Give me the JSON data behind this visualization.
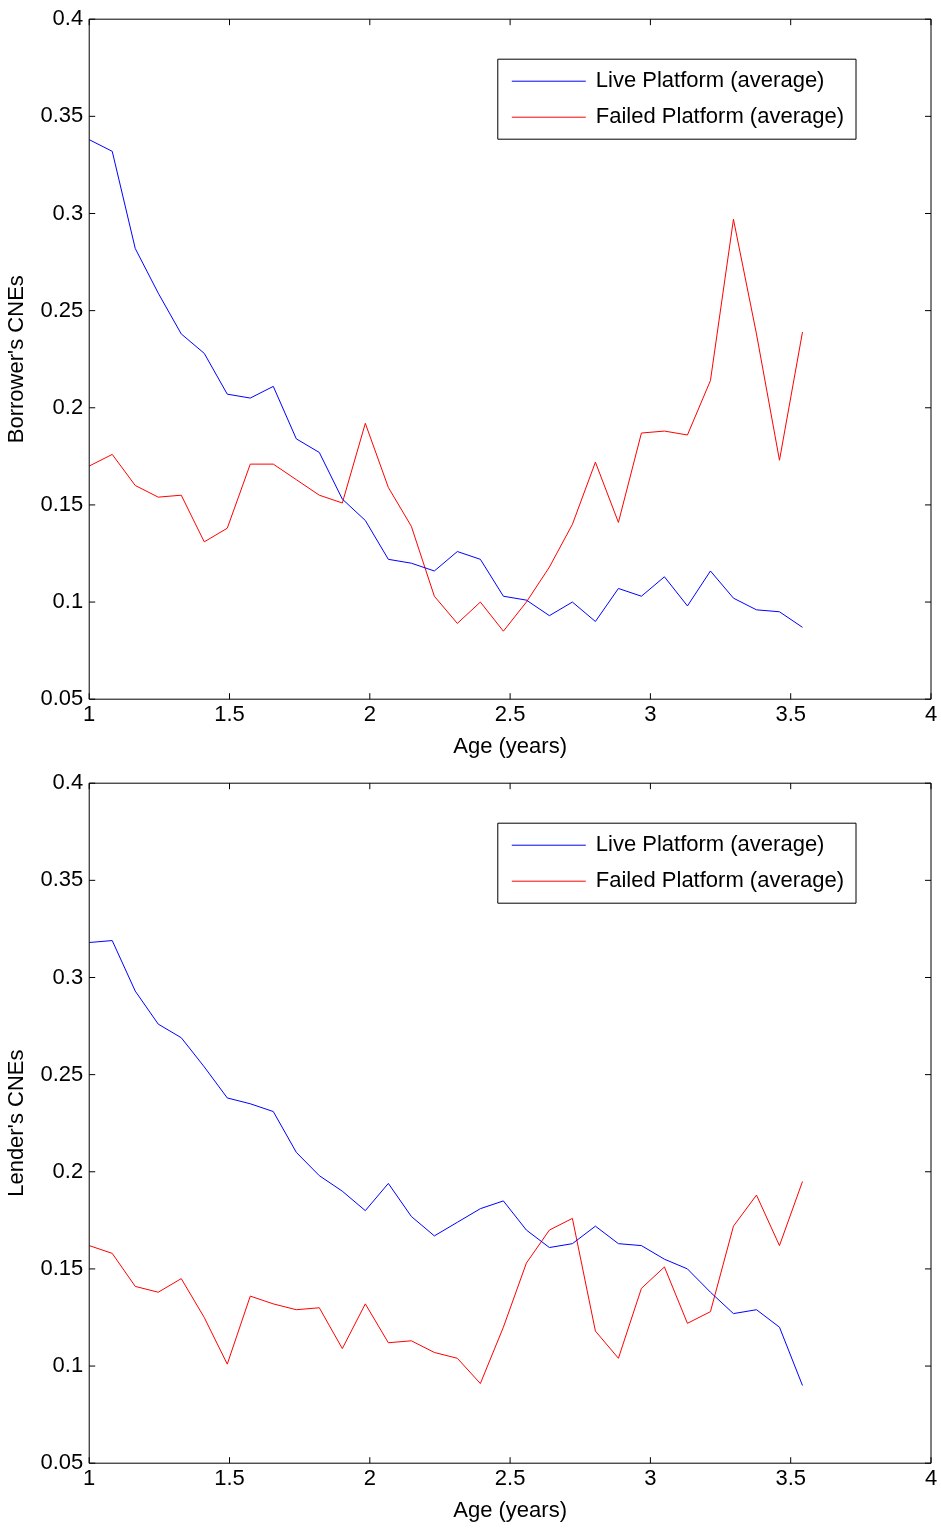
{
  "chart_data": [
    {
      "type": "line",
      "xlabel": "Age (years)",
      "ylabel": "Borrower's CNEs",
      "x": [
        1,
        1.082,
        1.164,
        1.246,
        1.328,
        1.41,
        1.492,
        1.574,
        1.656,
        1.738,
        1.82,
        1.902,
        1.984,
        2.066,
        2.148,
        2.23,
        2.312,
        2.394,
        2.476,
        2.558,
        2.64,
        2.722,
        2.804,
        2.886,
        2.968,
        3.05,
        3.132,
        3.214,
        3.296,
        3.378,
        3.46,
        3.542
      ],
      "series": [
        {
          "name": "Live Platform (average)",
          "color": "#0000ff",
          "values": [
            0.338,
            0.332,
            0.282,
            0.259,
            0.238,
            0.228,
            0.207,
            0.205,
            0.211,
            0.184,
            0.177,
            0.153,
            0.142,
            0.122,
            0.12,
            0.116,
            0.126,
            0.122,
            0.103,
            0.101,
            0.093,
            0.1,
            0.09,
            0.107,
            0.103,
            0.113,
            0.098,
            0.116,
            0.102,
            0.096,
            0.095,
            0.087
          ]
        },
        {
          "name": "Failed Platform (average)",
          "color": "#ff0000",
          "values": [
            0.17,
            0.176,
            0.16,
            0.154,
            0.155,
            0.131,
            0.138,
            0.171,
            0.171,
            0.163,
            0.155,
            0.151,
            0.192,
            0.159,
            0.139,
            0.103,
            0.089,
            0.1,
            0.085,
            0.1,
            0.118,
            0.14,
            0.172,
            0.141,
            0.187,
            0.188,
            0.186,
            0.214,
            0.297,
            0.238,
            0.173,
            0.239
          ]
        }
      ],
      "xlim": [
        1,
        4
      ],
      "xticks": [
        1,
        1.5,
        2,
        2.5,
        3,
        3.5,
        4
      ],
      "ylim": [
        0.05,
        0.4
      ],
      "yticks": [
        0.05,
        0.1,
        0.15,
        0.2,
        0.25,
        0.3,
        0.35,
        0.4
      ],
      "grid": false,
      "legend": "top right",
      "marker": "none",
      "line_style": "solid"
    },
    {
      "type": "line",
      "xlabel": "Age (years)",
      "ylabel": "Lender's CNEs",
      "x": [
        1,
        1.082,
        1.164,
        1.246,
        1.328,
        1.41,
        1.492,
        1.574,
        1.656,
        1.738,
        1.82,
        1.902,
        1.984,
        2.066,
        2.148,
        2.23,
        2.312,
        2.394,
        2.476,
        2.558,
        2.64,
        2.722,
        2.804,
        2.886,
        2.968,
        3.05,
        3.132,
        3.214,
        3.296,
        3.378,
        3.46,
        3.542
      ],
      "series": [
        {
          "name": "Live Platform (average)",
          "color": "#0000ff",
          "values": [
            0.318,
            0.319,
            0.293,
            0.276,
            0.269,
            0.254,
            0.238,
            0.235,
            0.231,
            0.21,
            0.198,
            0.19,
            0.18,
            0.194,
            0.177,
            0.167,
            0.174,
            0.181,
            0.185,
            0.17,
            0.161,
            0.163,
            0.172,
            0.163,
            0.162,
            0.155,
            0.15,
            0.138,
            0.127,
            0.129,
            0.12,
            0.09
          ]
        },
        {
          "name": "Failed Platform (average)",
          "color": "#ff0000",
          "values": [
            0.162,
            0.158,
            0.141,
            0.138,
            0.145,
            0.125,
            0.101,
            0.136,
            0.132,
            0.129,
            0.13,
            0.109,
            0.132,
            0.112,
            0.113,
            0.107,
            0.104,
            0.091,
            0.12,
            0.153,
            0.17,
            0.176,
            0.118,
            0.104,
            0.14,
            0.151,
            0.122,
            0.128,
            0.172,
            0.188,
            0.162,
            0.195
          ]
        }
      ],
      "xlim": [
        1,
        4
      ],
      "xticks": [
        1,
        1.5,
        2,
        2.5,
        3,
        3.5,
        4
      ],
      "ylim": [
        0.05,
        0.4
      ],
      "yticks": [
        0.05,
        0.1,
        0.15,
        0.2,
        0.25,
        0.3,
        0.35,
        0.4
      ],
      "grid": false,
      "legend": "top right",
      "marker": "none",
      "line_style": "solid"
    }
  ]
}
